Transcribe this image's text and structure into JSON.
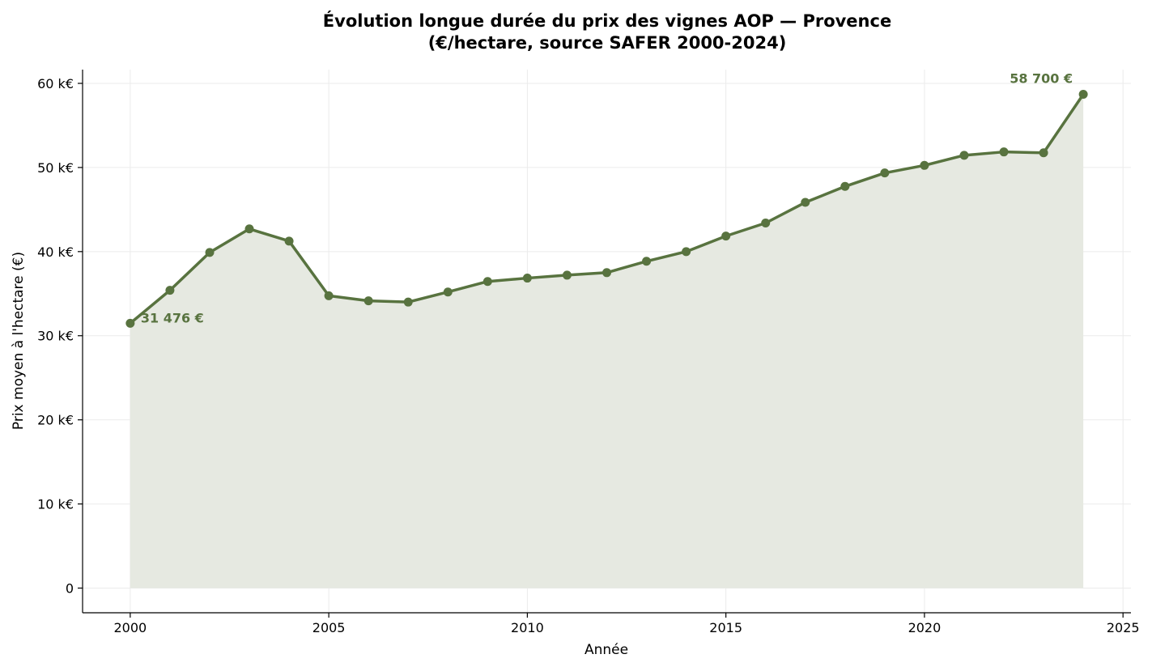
{
  "chart_data": {
    "type": "line",
    "title": "Évolution longue durée du prix des vignes AOP — Provence",
    "subtitle": "(€/hectare, source SAFER 2000-2024)",
    "xlabel": "Année",
    "ylabel": "Prix moyen à l'hectare (€)",
    "x": [
      2000,
      2001,
      2002,
      2003,
      2004,
      2005,
      2006,
      2007,
      2008,
      2009,
      2010,
      2011,
      2012,
      2013,
      2014,
      2015,
      2016,
      2017,
      2018,
      2019,
      2020,
      2021,
      2022,
      2023,
      2024
    ],
    "series": [
      {
        "values": [
          31476,
          35400,
          39900,
          42700,
          41250,
          34750,
          34150,
          34000,
          35200,
          36450,
          36850,
          37200,
          37500,
          38850,
          40000,
          41850,
          43400,
          45850,
          47750,
          49350,
          50250,
          51450,
          51850,
          51750,
          58700
        ],
        "color": "#58733f",
        "fill": "#e6e9e1"
      }
    ],
    "xlim": [
      1998.8,
      2025.2
    ],
    "ylim": [
      -2935,
      61635
    ],
    "xticks": [
      2000,
      2005,
      2010,
      2015,
      2020,
      2025
    ],
    "xtick_labels": [
      "2000",
      "2005",
      "2010",
      "2015",
      "2020",
      "2025"
    ],
    "yticks": [
      0,
      10000,
      20000,
      30000,
      40000,
      50000,
      60000
    ],
    "ytick_labels": [
      "0",
      "10 k€",
      "20 k€",
      "30 k€",
      "40 k€",
      "50 k€",
      "60 k€"
    ],
    "grid": true,
    "annotations": [
      {
        "text": "31 476 €",
        "x": 2000,
        "y": 31476
      },
      {
        "text": "58 700 €",
        "x": 2024,
        "y": 58700
      }
    ]
  }
}
